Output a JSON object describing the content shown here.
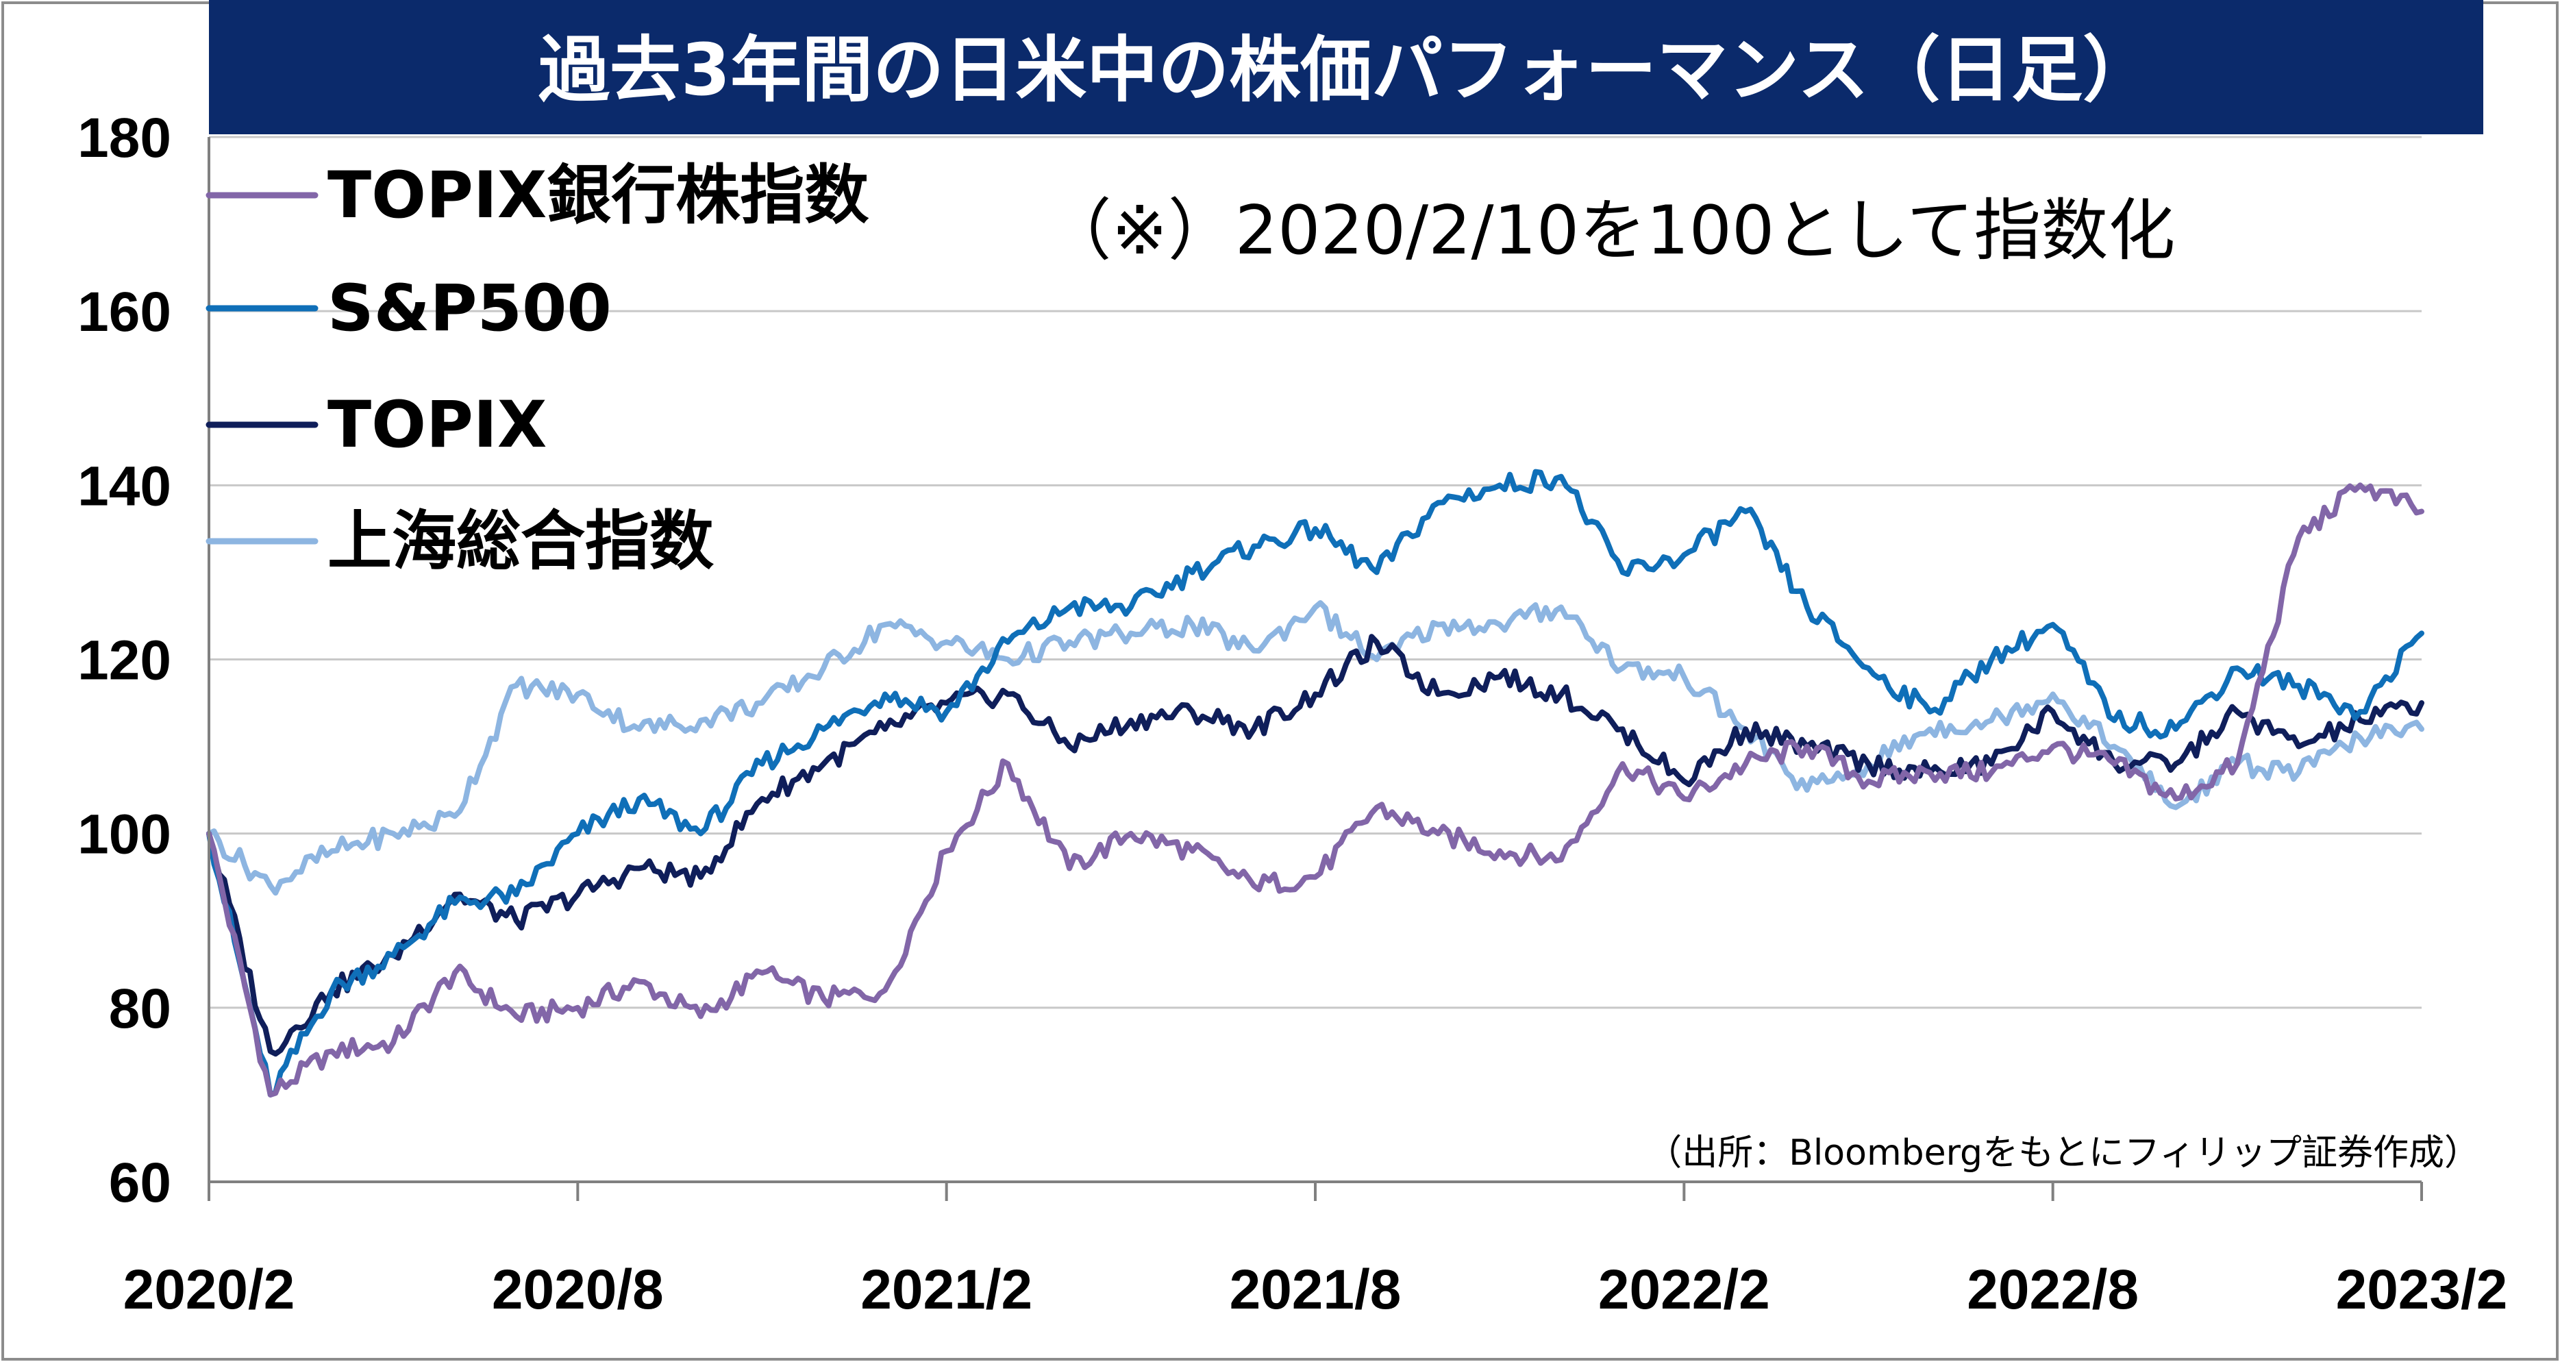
{
  "chart_data": {
    "type": "line",
    "title": "過去3年間の日米中の株価パフォーマンス（日足）",
    "note": "（※）2020/2/10を100として指数化",
    "source": "（出所：Bloombergをもとにフィリップ証券作成）",
    "ylim": [
      60,
      180
    ],
    "yticks": [
      60,
      80,
      100,
      120,
      140,
      160,
      180
    ],
    "grid": true,
    "legend_position": "top-left",
    "x_tick_labels": [
      "2020/2",
      "2020/8",
      "2021/2",
      "2021/8",
      "2022/2",
      "2022/8",
      "2023/2"
    ],
    "x": [
      "2020/2",
      "2020/3",
      "2020/4",
      "2020/5",
      "2020/6",
      "2020/7",
      "2020/8",
      "2020/9",
      "2020/10",
      "2020/11",
      "2020/12",
      "2021/1",
      "2021/2",
      "2021/3",
      "2021/4",
      "2021/5",
      "2021/6",
      "2021/7",
      "2021/8",
      "2021/9",
      "2021/10",
      "2021/11",
      "2021/12",
      "2022/1",
      "2022/2",
      "2022/3",
      "2022/4",
      "2022/5",
      "2022/6",
      "2022/7",
      "2022/8",
      "2022/9",
      "2022/10",
      "2022/11",
      "2022/12",
      "2023/1",
      "2023/2"
    ],
    "series": [
      {
        "name": "TOPIX銀行株指数",
        "color": "#8266a8",
        "values": [
          100,
          70,
          75,
          76,
          84,
          79,
          80,
          83,
          79,
          84,
          81,
          82,
          98,
          108,
          96,
          100,
          98,
          94,
          95,
          103,
          100,
          98,
          97,
          108,
          104,
          108,
          110,
          106,
          107,
          107,
          110,
          108,
          104,
          108,
          134,
          140,
          137
        ]
      },
      {
        "name": "S&P500",
        "color": "#0f6fb8",
        "values": [
          100,
          70,
          82,
          86,
          92,
          93,
          100,
          104,
          100,
          108,
          112,
          116,
          114,
          122,
          126,
          126,
          130,
          133,
          135,
          130,
          138,
          140,
          141,
          130,
          132,
          137,
          126,
          119,
          114,
          120,
          124,
          113,
          112,
          119,
          117,
          114,
          123
        ]
      },
      {
        "name": "TOPIX",
        "color": "#0f1e5a",
        "values": [
          100,
          75,
          82,
          86,
          93,
          90,
          93,
          96,
          95,
          104,
          108,
          112,
          115,
          116,
          110,
          113,
          114,
          112,
          116,
          122,
          116,
          118,
          116,
          112,
          106,
          112,
          110,
          108,
          107,
          108,
          114,
          108,
          108,
          114,
          110,
          113,
          115
        ]
      },
      {
        "name": "上海総合指数",
        "color": "#8db5e1",
        "values": [
          100,
          94,
          98,
          100,
          102,
          117,
          116,
          112,
          113,
          115,
          119,
          124,
          122,
          120,
          122,
          123,
          124,
          121,
          126,
          120,
          124,
          124,
          126,
          119,
          118,
          112,
          105,
          108,
          112,
          113,
          116,
          110,
          103,
          108,
          107,
          111,
          112
        ]
      }
    ]
  }
}
